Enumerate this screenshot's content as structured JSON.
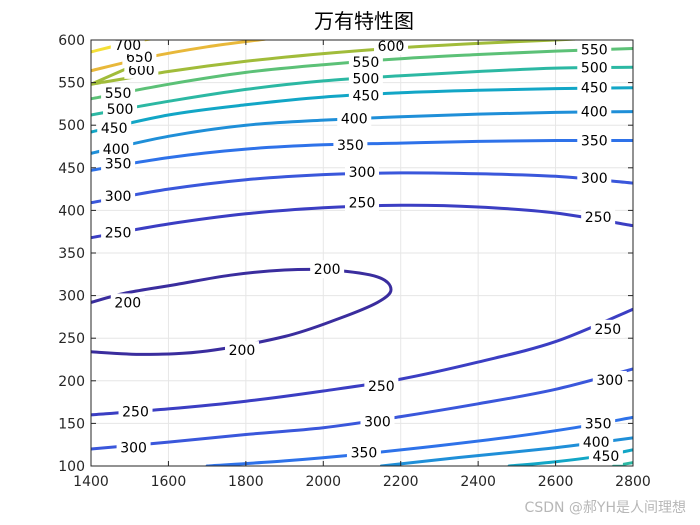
{
  "chart_data": {
    "type": "contour",
    "title": "万有特性图",
    "xlabel": "",
    "ylabel": "",
    "xlim": [
      1400,
      2800
    ],
    "ylim": [
      100,
      600
    ],
    "xticks": [
      1400,
      1600,
      1800,
      2000,
      2200,
      2400,
      2600,
      2800
    ],
    "yticks": [
      100,
      150,
      200,
      250,
      300,
      350,
      400,
      450,
      500,
      550,
      600
    ],
    "grid": true,
    "levels": [
      {
        "value": 200,
        "color": "#3a2d9e",
        "paths": [
          [
            [
              1400,
              234
            ],
            [
              1540,
              231
            ],
            [
              1700,
              235
            ],
            [
              1900,
              252
            ],
            [
              2040,
              273
            ],
            [
              2140,
              292
            ],
            [
              2175,
              307
            ],
            [
              2140,
              322
            ],
            [
              2020,
              330
            ],
            [
              1900,
              330
            ],
            [
              1760,
              324
            ],
            [
              1620,
              313
            ],
            [
              1490,
              303
            ],
            [
              1400,
              292
            ]
          ]
        ],
        "labels": [
          {
            "text": "200",
            "x": 1495,
            "y": 292
          },
          {
            "text": "200",
            "x": 2010,
            "y": 331
          },
          {
            "text": "200",
            "x": 1790,
            "y": 236
          }
        ]
      },
      {
        "value": 250,
        "color": "#3b3ec3",
        "paths": [
          [
            [
              1400,
              368
            ],
            [
              1600,
              384
            ],
            [
              1800,
              396
            ],
            [
              2000,
              403
            ],
            [
              2200,
              406
            ],
            [
              2400,
              404
            ],
            [
              2600,
              397
            ],
            [
              2800,
              382
            ]
          ],
          [
            [
              1400,
              160
            ],
            [
              1600,
              167
            ],
            [
              1800,
              176
            ],
            [
              2000,
              188
            ],
            [
              2200,
              202
            ],
            [
              2400,
              222
            ],
            [
              2600,
              246
            ],
            [
              2800,
              284
            ]
          ]
        ],
        "labels": [
          {
            "text": "250",
            "x": 1470,
            "y": 374
          },
          {
            "text": "250",
            "x": 2100,
            "y": 409
          },
          {
            "text": "250",
            "x": 2710,
            "y": 392
          },
          {
            "text": "250",
            "x": 1515,
            "y": 164
          },
          {
            "text": "250",
            "x": 2150,
            "y": 194
          },
          {
            "text": "250",
            "x": 2735,
            "y": 261
          }
        ]
      },
      {
        "value": 300,
        "color": "#3a57db",
        "paths": [
          [
            [
              1400,
              409
            ],
            [
              1600,
              425
            ],
            [
              1800,
              436
            ],
            [
              2000,
              442
            ],
            [
              2200,
              444
            ],
            [
              2400,
              443
            ],
            [
              2600,
              440
            ],
            [
              2800,
              432
            ]
          ],
          [
            [
              1400,
              120
            ],
            [
              1600,
              128
            ],
            [
              1800,
              137
            ],
            [
              2000,
              145
            ],
            [
              2200,
              158
            ],
            [
              2400,
              173
            ],
            [
              2600,
              190
            ],
            [
              2800,
              214
            ]
          ]
        ],
        "labels": [
          {
            "text": "300",
            "x": 1470,
            "y": 417
          },
          {
            "text": "300",
            "x": 2100,
            "y": 445
          },
          {
            "text": "300",
            "x": 2700,
            "y": 438
          },
          {
            "text": "300",
            "x": 1510,
            "y": 122
          },
          {
            "text": "300",
            "x": 2140,
            "y": 152
          },
          {
            "text": "300",
            "x": 2740,
            "y": 201
          }
        ]
      },
      {
        "value": 350,
        "color": "#2e72e9",
        "paths": [
          [
            [
              1400,
              447
            ],
            [
              1600,
              462
            ],
            [
              1800,
              472
            ],
            [
              2000,
              477
            ],
            [
              2200,
              479
            ],
            [
              2400,
              481
            ],
            [
              2600,
              482
            ],
            [
              2800,
              482
            ]
          ],
          [
            [
              1700,
              100
            ],
            [
              1900,
              106
            ],
            [
              2100,
              114
            ],
            [
              2300,
              124
            ],
            [
              2500,
              135
            ],
            [
              2650,
              145
            ],
            [
              2800,
              157
            ]
          ]
        ],
        "labels": [
          {
            "text": "350",
            "x": 1470,
            "y": 455
          },
          {
            "text": "350",
            "x": 2070,
            "y": 477
          },
          {
            "text": "350",
            "x": 2700,
            "y": 482
          },
          {
            "text": "350",
            "x": 2105,
            "y": 116
          },
          {
            "text": "350",
            "x": 2710,
            "y": 150
          }
        ]
      },
      {
        "value": 400,
        "color": "#1f8fd8",
        "paths": [
          [
            [
              1400,
              467
            ],
            [
              1600,
              487
            ],
            [
              1800,
              500
            ],
            [
              2000,
              506
            ],
            [
              2200,
              510
            ],
            [
              2400,
              513
            ],
            [
              2600,
              515
            ],
            [
              2800,
              516
            ]
          ],
          [
            [
              2150,
              100
            ],
            [
              2350,
              110
            ],
            [
              2550,
              119
            ],
            [
              2700,
              127
            ],
            [
              2800,
              133
            ]
          ]
        ],
        "labels": [
          {
            "text": "400",
            "x": 1465,
            "y": 472
          },
          {
            "text": "400",
            "x": 2080,
            "y": 508
          },
          {
            "text": "400",
            "x": 2700,
            "y": 516
          },
          {
            "text": "400",
            "x": 2705,
            "y": 128
          }
        ]
      },
      {
        "value": 450,
        "color": "#12a6c6",
        "paths": [
          [
            [
              1400,
              492
            ],
            [
              1600,
              512
            ],
            [
              1800,
              524
            ],
            [
              2000,
              533
            ],
            [
              2200,
              538
            ],
            [
              2400,
              541
            ],
            [
              2600,
              543
            ],
            [
              2800,
              544
            ]
          ],
          [
            [
              2480,
              100
            ],
            [
              2600,
              105
            ],
            [
              2720,
              112
            ],
            [
              2800,
              119
            ]
          ]
        ],
        "labels": [
          {
            "text": "450",
            "x": 1460,
            "y": 497
          },
          {
            "text": "450",
            "x": 2110,
            "y": 535
          },
          {
            "text": "450",
            "x": 2700,
            "y": 544
          },
          {
            "text": "450",
            "x": 2730,
            "y": 112
          }
        ]
      },
      {
        "value": 500,
        "color": "#2cb8a3",
        "paths": [
          [
            [
              1400,
              512
            ],
            [
              1600,
              528
            ],
            [
              1800,
              542
            ],
            [
              2000,
              552
            ],
            [
              2200,
              558
            ],
            [
              2400,
              563
            ],
            [
              2600,
              567
            ],
            [
              2800,
              568
            ]
          ],
          [
            [
              2750,
              100
            ],
            [
              2800,
              104
            ]
          ]
        ],
        "labels": [
          {
            "text": "500",
            "x": 1475,
            "y": 519
          },
          {
            "text": "500",
            "x": 2110,
            "y": 555
          },
          {
            "text": "500",
            "x": 2700,
            "y": 568
          }
        ]
      },
      {
        "value": 550,
        "color": "#5cc177",
        "paths": [
          [
            [
              1400,
              531
            ],
            [
              1600,
              548
            ],
            [
              1800,
              562
            ],
            [
              2000,
              571
            ],
            [
              2200,
              578
            ],
            [
              2400,
              583
            ],
            [
              2600,
              587
            ],
            [
              2800,
              590
            ]
          ]
        ],
        "labels": [
          {
            "text": "550",
            "x": 1470,
            "y": 538
          },
          {
            "text": "550",
            "x": 2110,
            "y": 574
          },
          {
            "text": "550",
            "x": 2700,
            "y": 589
          }
        ]
      },
      {
        "value": 600,
        "color": "#a1bc3a",
        "paths": [
          [
            [
              1400,
              548
            ],
            [
              1600,
              563
            ],
            [
              1800,
              575
            ],
            [
              2000,
              584
            ],
            [
              2200,
              591
            ],
            [
              2400,
              596
            ],
            [
              2600,
              600
            ],
            [
              2650,
              601
            ]
          ],
          [
            [
              1400,
              548
            ],
            [
              1550,
              578
            ]
          ]
        ],
        "labels": [
          {
            "text": "600",
            "x": 1530,
            "y": 565
          },
          {
            "text": "600",
            "x": 2175,
            "y": 593
          }
        ]
      },
      {
        "value": 650,
        "color": "#e8b83a",
        "paths": [
          [
            [
              1400,
              564
            ],
            [
              1550,
              580
            ],
            [
              1700,
              592
            ],
            [
              1850,
              601
            ]
          ]
        ],
        "labels": [
          {
            "text": "650",
            "x": 1525,
            "y": 580
          }
        ]
      },
      {
        "value": 700,
        "color": "#f4df36",
        "paths": [
          [
            [
              1400,
              586
            ],
            [
              1500,
              597
            ],
            [
              1580,
              603
            ]
          ]
        ],
        "labels": [
          {
            "text": "700",
            "x": 1495,
            "y": 594
          }
        ]
      }
    ]
  },
  "watermark": "CSDN @郝YH是人间理想"
}
